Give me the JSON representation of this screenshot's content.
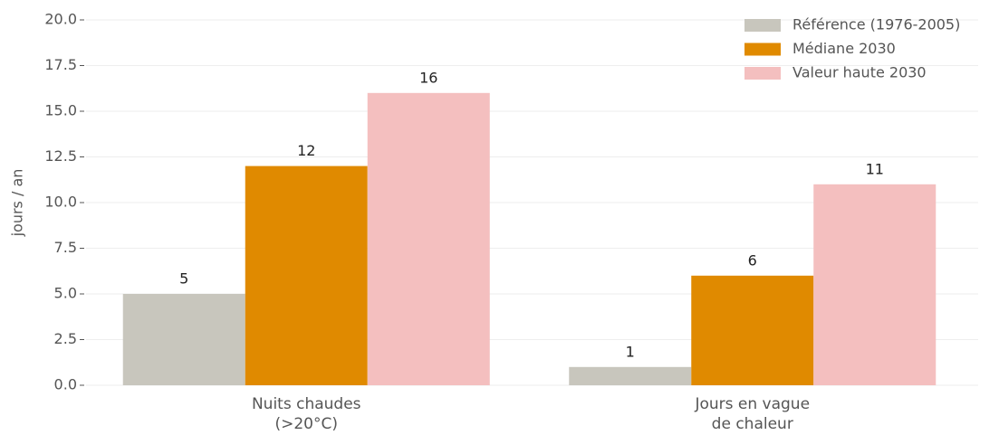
{
  "chart_data": {
    "type": "bar",
    "ylabel": "jours / an",
    "categories": [
      "Nuits chaudes\n(>20°C)",
      "Jours en vague\nde chaleur"
    ],
    "series": [
      {
        "name": "Référence (1976-2005)",
        "color": "#c8c6bd",
        "values": [
          5,
          1
        ]
      },
      {
        "name": "Médiane 2030",
        "color": "#e08a00",
        "values": [
          12,
          6
        ]
      },
      {
        "name": "Valeur haute 2030",
        "color": "#f4bfbf",
        "values": [
          16,
          11
        ]
      }
    ],
    "ylim": [
      0,
      20
    ],
    "yticks": [
      {
        "value": 0,
        "label": "0.0"
      },
      {
        "value": 2.5,
        "label": "2.5"
      },
      {
        "value": 5,
        "label": "5.0"
      },
      {
        "value": 7.5,
        "label": "7.5"
      },
      {
        "value": 10,
        "label": "10.0"
      },
      {
        "value": 12.5,
        "label": "12.5"
      },
      {
        "value": 15,
        "label": "15.0"
      },
      {
        "value": 17.5,
        "label": "17.5"
      },
      {
        "value": 20,
        "label": "20.0"
      }
    ],
    "grid": true,
    "legend": "upper right"
  }
}
